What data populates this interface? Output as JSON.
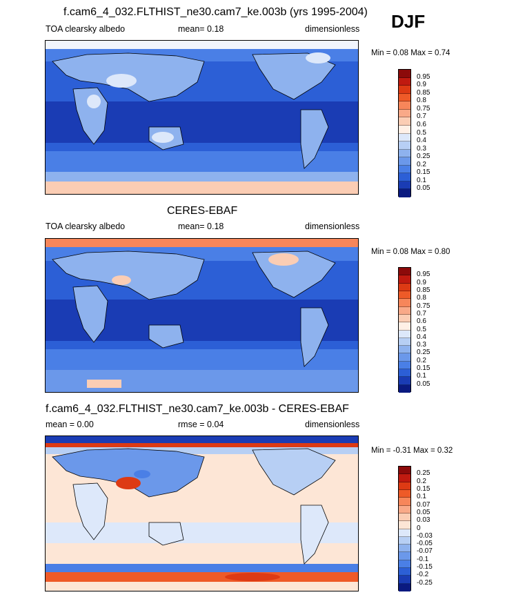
{
  "season": "DJF",
  "panels": [
    {
      "title": "f.cam6_4_032.FLTHIST_ne30.cam7_ke.003b (yrs 1995-2004)",
      "left_label": "TOA clearsky albedo",
      "mid_label": "mean=   0.18",
      "right_label": "dimensionless",
      "minmax": "Min =   0.08 Max =   0.74"
    },
    {
      "title": "CERES-EBAF",
      "left_label": "TOA clearsky albedo",
      "mid_label": "mean=   0.18",
      "right_label": "dimensionless",
      "minmax": "Min =   0.08 Max =   0.80"
    },
    {
      "title": "f.cam6_4_032.FLTHIST_ne30.cam7_ke.003b - CERES-EBAF",
      "left_label": "mean =   0.00",
      "mid_label": "rmse =   0.04",
      "right_label": "dimensionless",
      "minmax": "Min =  -0.31 Max =   0.32"
    }
  ],
  "chart_data": [
    {
      "type": "heatmap",
      "title": "f.cam6_4_032.FLTHIST_ne30.cam7_ke.003b (yrs 1995-2004)",
      "variable": "TOA clearsky albedo",
      "units": "dimensionless",
      "mean": 0.18,
      "min": 0.08,
      "max": 0.74,
      "colorbar_levels": [
        "0.95",
        "0.9",
        "0.85",
        "0.8",
        "0.75",
        "0.7",
        "0.6",
        "0.5",
        "0.4",
        "0.3",
        "0.25",
        "0.2",
        "0.15",
        "0.1",
        "0.05"
      ],
      "colorbar_colors": [
        "#8c0a0a",
        "#c01a10",
        "#dd3a14",
        "#ee5a28",
        "#f7865a",
        "#f9a988",
        "#fbcdb4",
        "#fff0e6",
        "#dde8fa",
        "#b7cff4",
        "#8eb2ee",
        "#6b98ea",
        "#4a7fe6",
        "#2c5fd6",
        "#1a3cb4",
        "#0a1a80"
      ]
    },
    {
      "type": "heatmap",
      "title": "CERES-EBAF",
      "variable": "TOA clearsky albedo",
      "units": "dimensionless",
      "mean": 0.18,
      "min": 0.08,
      "max": 0.8,
      "colorbar_levels": [
        "0.95",
        "0.9",
        "0.85",
        "0.8",
        "0.75",
        "0.7",
        "0.6",
        "0.5",
        "0.4",
        "0.3",
        "0.25",
        "0.2",
        "0.15",
        "0.1",
        "0.05"
      ],
      "colorbar_colors": [
        "#8c0a0a",
        "#c01a10",
        "#dd3a14",
        "#ee5a28",
        "#f7865a",
        "#f9a988",
        "#fbcdb4",
        "#fff0e6",
        "#dde8fa",
        "#b7cff4",
        "#8eb2ee",
        "#6b98ea",
        "#4a7fe6",
        "#2c5fd6",
        "#1a3cb4",
        "#0a1a80"
      ]
    },
    {
      "type": "heatmap",
      "title": "f.cam6_4_032.FLTHIST_ne30.cam7_ke.003b - CERES-EBAF",
      "units": "dimensionless",
      "mean": 0.0,
      "rmse": 0.04,
      "min": -0.31,
      "max": 0.32,
      "colorbar_levels": [
        "0.25",
        "0.2",
        "0.15",
        "0.1",
        "0.07",
        "0.05",
        "0.03",
        "0",
        "-0.03",
        "-0.05",
        "-0.07",
        "-0.1",
        "-0.15",
        "-0.2",
        "-0.25"
      ],
      "colorbar_colors": [
        "#8c0a0a",
        "#c01a10",
        "#dd3a14",
        "#ee5a28",
        "#f7865a",
        "#f9a988",
        "#fbcdb4",
        "#fde6d6",
        "#dde8fa",
        "#b7cff4",
        "#8eb2ee",
        "#6b98ea",
        "#4a7fe6",
        "#2c5fd6",
        "#1a3cb4",
        "#0a1a80"
      ]
    }
  ]
}
